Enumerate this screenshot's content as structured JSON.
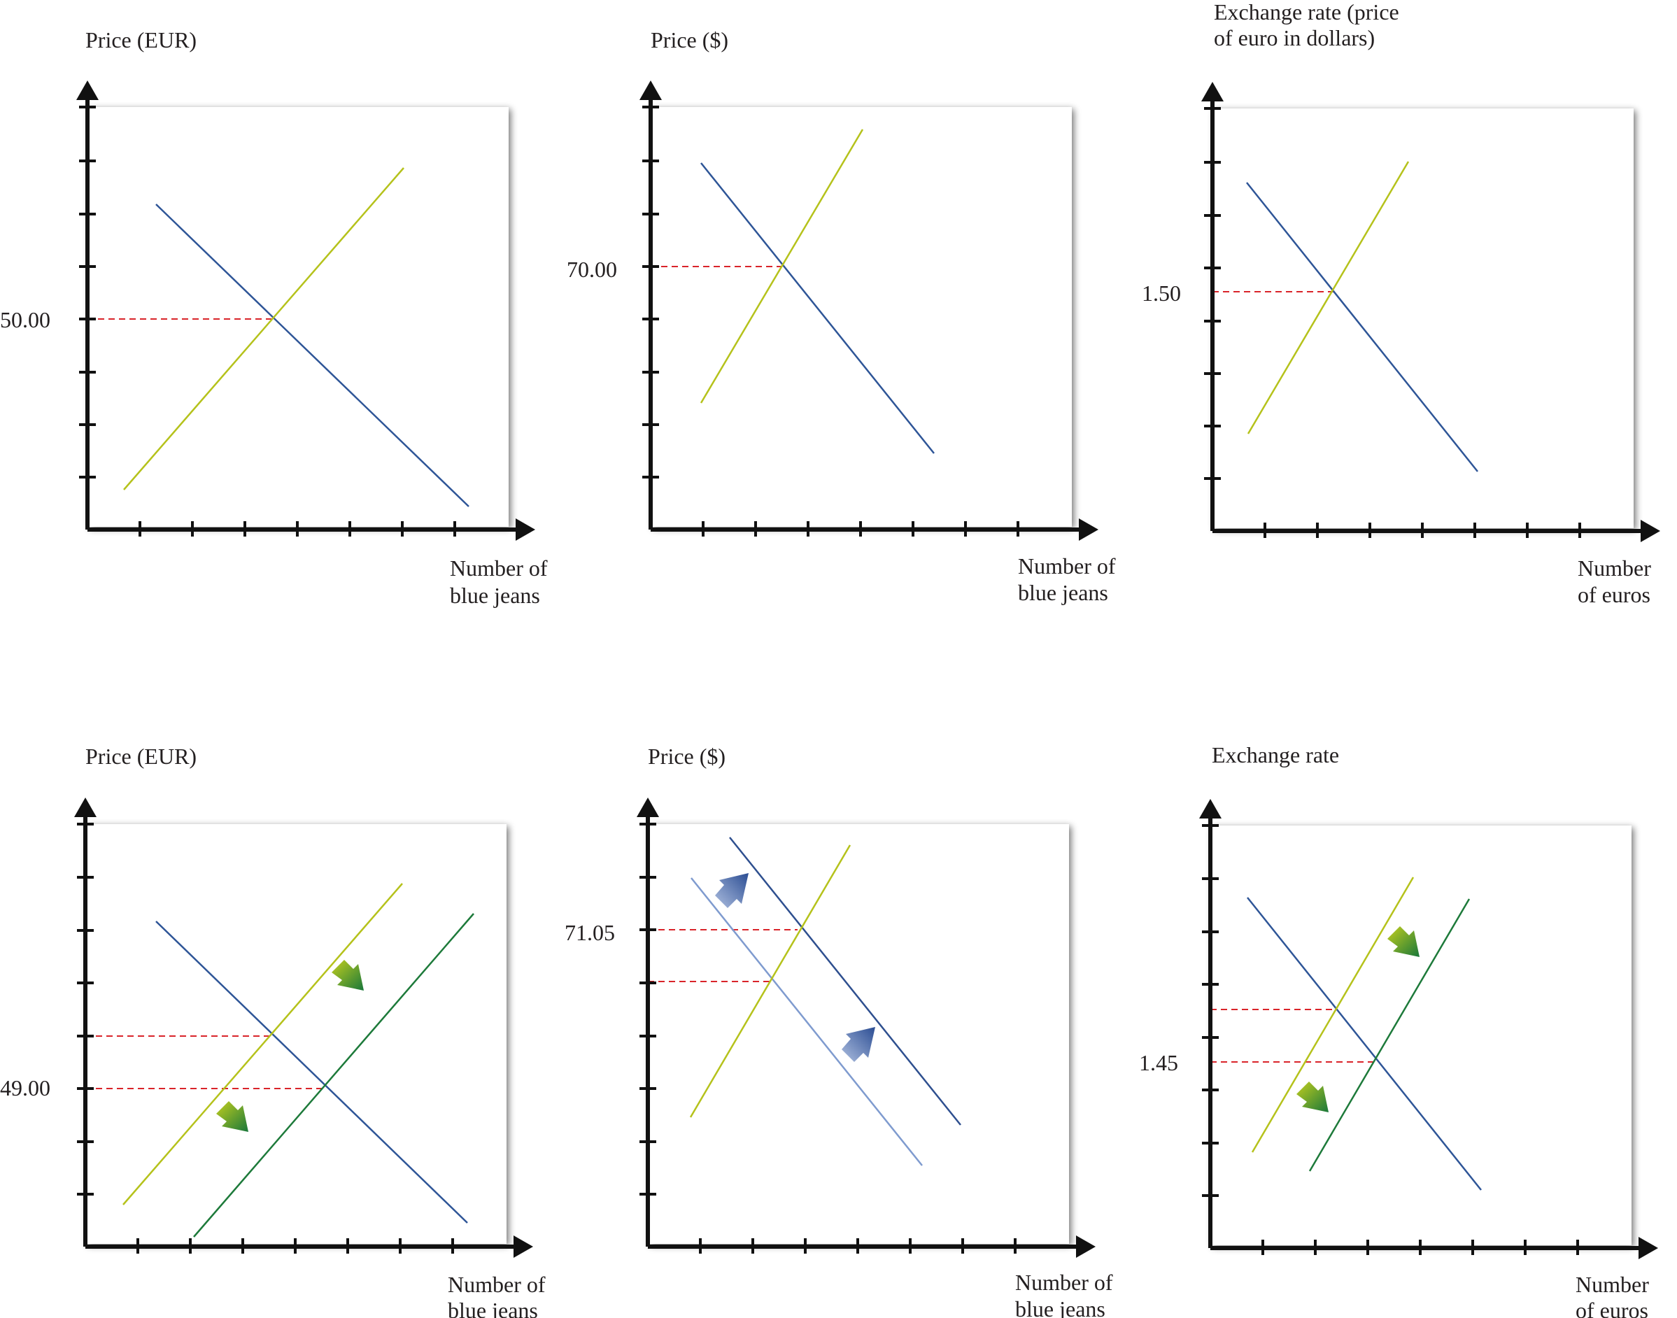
{
  "colors": {
    "demand": "#2e5597",
    "supply": "#b5c21b",
    "supply_shifted": "#1d7a3a",
    "demand_shifted": "#2e4f8f",
    "demand_original_light": "#7f9bcf",
    "dashed": "#d9242a",
    "axis": "#111111",
    "arrow_green_start": "#b8c61c",
    "arrow_green_end": "#1a7a36",
    "arrow_blue_start": "#a9bde0",
    "arrow_blue_end": "#2c4f95"
  },
  "panels": [
    {
      "id": "top-left",
      "y_title": [
        "Price (EUR)"
      ],
      "x_title": [
        "Number of",
        "blue jeans"
      ],
      "tick_values": [
        "50.00"
      ],
      "arrows": []
    },
    {
      "id": "top-middle",
      "y_title": [
        "Price ($)"
      ],
      "x_title": [
        "Number of",
        "blue jeans"
      ],
      "tick_values": [
        "70.00"
      ],
      "arrows": []
    },
    {
      "id": "top-right",
      "y_title": [
        "Exchange rate (price",
        "of euro in dollars)"
      ],
      "x_title": [
        "Number",
        "of euros"
      ],
      "tick_values": [
        "1.50"
      ],
      "arrows": []
    },
    {
      "id": "bottom-left",
      "y_title": [
        "Price (EUR)"
      ],
      "x_title": [
        "Number of",
        "blue jeans"
      ],
      "tick_values": [
        "49.00"
      ],
      "arrows": [
        "green",
        "green"
      ]
    },
    {
      "id": "bottom-middle",
      "y_title": [
        "Price ($)"
      ],
      "x_title": [
        "Number of",
        "blue jeans"
      ],
      "tick_values": [
        "71.05"
      ],
      "arrows": [
        "blue",
        "blue"
      ]
    },
    {
      "id": "bottom-right",
      "y_title": [
        "Exchange rate"
      ],
      "x_title": [
        "Number",
        "of euros"
      ],
      "tick_values": [
        "1.45"
      ],
      "arrows": [
        "green",
        "green"
      ]
    }
  ]
}
